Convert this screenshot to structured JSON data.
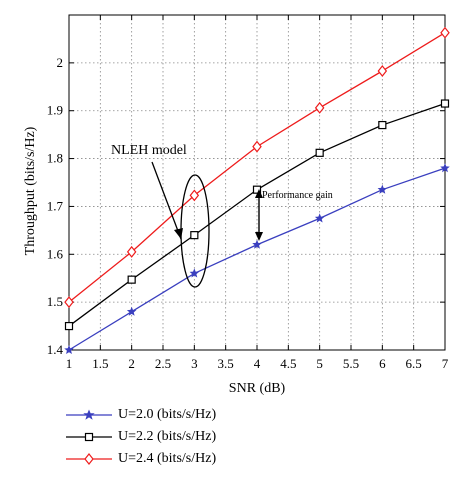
{
  "chart_data": {
    "type": "line",
    "title": "",
    "xlabel": "SNR (dB)",
    "ylabel": "Throughput (bits/s/Hz)",
    "xlim": [
      1,
      7
    ],
    "ylim": [
      1.4,
      2.1
    ],
    "xticks": [
      "1",
      "1.5",
      "2",
      "2.5",
      "3",
      "3.5",
      "4",
      "4.5",
      "5",
      "5.5",
      "6",
      "6.5",
      "7"
    ],
    "yticks": [
      "1.4",
      "1.5",
      "1.6",
      "1.7",
      "1.8",
      "1.9",
      "2"
    ],
    "grid": true,
    "x": [
      1,
      2,
      3,
      4,
      5,
      6,
      7
    ],
    "series": [
      {
        "name": "U=2.0 (bits/s/Hz)",
        "values": [
          1.4,
          1.48,
          1.56,
          1.62,
          1.675,
          1.735,
          1.78
        ],
        "color": "#3a3fbf",
        "marker": "star"
      },
      {
        "name": "U=2.2 (bits/s/Hz)",
        "values": [
          1.45,
          1.547,
          1.64,
          1.735,
          1.812,
          1.87,
          1.915
        ],
        "color": "#000000",
        "marker": "square"
      },
      {
        "name": "U=2.4 (bits/s/Hz)",
        "values": [
          1.5,
          1.605,
          1.723,
          1.825,
          1.906,
          1.983,
          2.063
        ],
        "color": "#ee1c1c",
        "marker": "diamond"
      }
    ],
    "annotations": [
      {
        "text": "NLEH model",
        "x": 3,
        "y": 1.64
      },
      {
        "text": "Performance gain",
        "x": 4,
        "y": 1.68
      }
    ],
    "legend_position": "bottom"
  }
}
